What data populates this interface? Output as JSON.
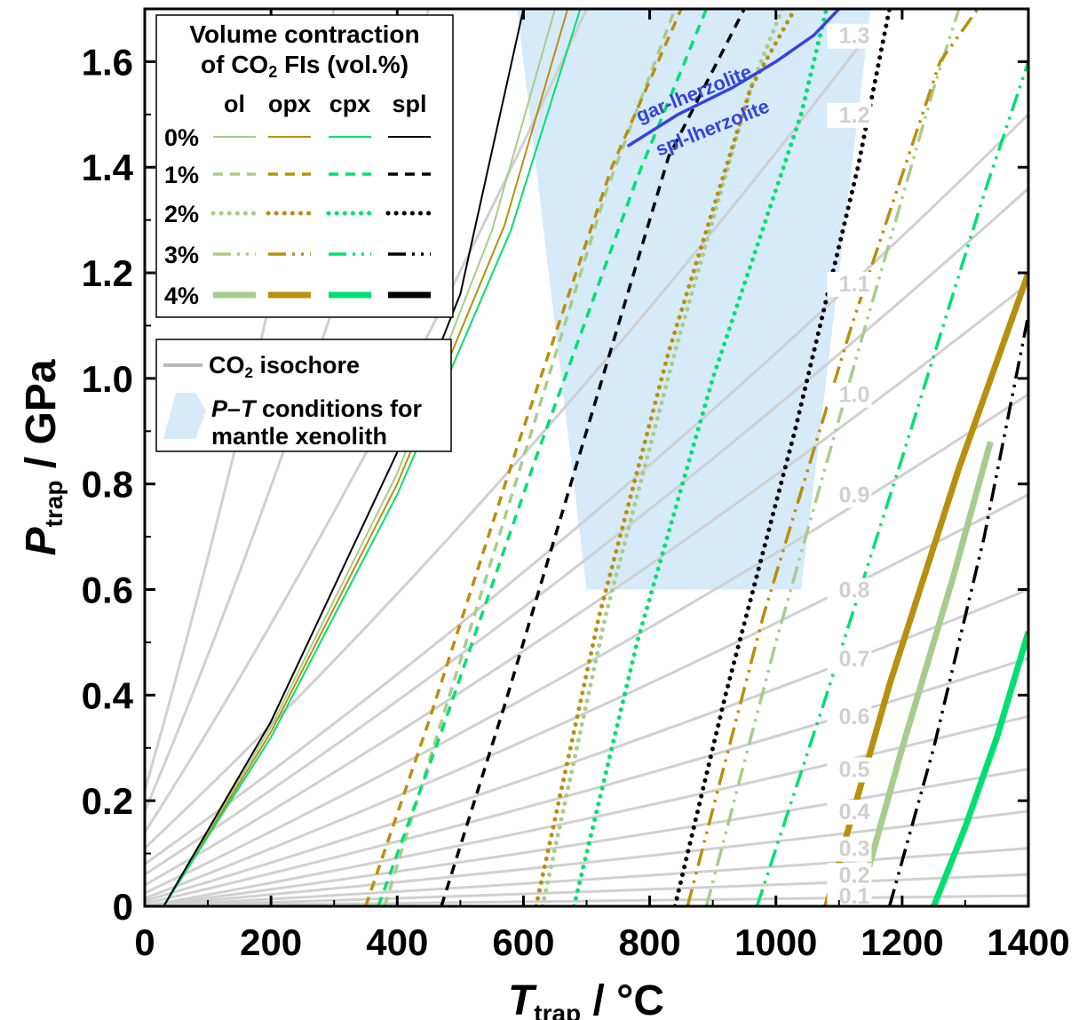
{
  "chart_data": {
    "type": "line",
    "xlabel_main": "T",
    "xlabel_sub": "trap",
    "xlabel_unit": " / °C",
    "ylabel_main": "P",
    "ylabel_sub": "trap",
    "ylabel_unit": " / GPa",
    "xlim": [
      0,
      1400
    ],
    "ylim": [
      0,
      1.7
    ],
    "xticks": [
      "0",
      "200",
      "400",
      "600",
      "800",
      "1000",
      "1200",
      "1400"
    ],
    "yticks": [
      "0",
      "0.2",
      "0.4",
      "0.6",
      "0.8",
      "1.0",
      "1.2",
      "1.4",
      "1.6"
    ],
    "xtick_values": [
      0,
      200,
      400,
      600,
      800,
      1000,
      1200,
      1400
    ],
    "ytick_values": [
      0,
      0.2,
      0.4,
      0.6,
      0.8,
      1.0,
      1.2,
      1.4,
      1.6
    ],
    "grid": false,
    "colors": {
      "ol": "#a8cc8c",
      "opx": "#b8900e",
      "cpx": "#00e070",
      "spl": "#000000",
      "isochore": "#d0d0d0",
      "region": "#d6eaf8",
      "boundary": "#3344e0"
    },
    "isochores": [
      {
        "label": "0.1",
        "points": [
          [
            0,
            0
          ],
          [
            1400,
            0.02
          ]
        ]
      },
      {
        "label": "0.2",
        "points": [
          [
            0,
            0
          ],
          [
            1400,
            0.06
          ]
        ]
      },
      {
        "label": "0.3",
        "points": [
          [
            0,
            0
          ],
          [
            1400,
            0.11
          ]
        ]
      },
      {
        "label": "0.4",
        "points": [
          [
            0,
            0
          ],
          [
            1400,
            0.18
          ]
        ]
      },
      {
        "label": "0.5",
        "points": [
          [
            0,
            0
          ],
          [
            1400,
            0.26
          ]
        ]
      },
      {
        "label": "0.6",
        "points": [
          [
            0,
            0
          ],
          [
            1400,
            0.36
          ]
        ]
      },
      {
        "label": "0.7",
        "points": [
          [
            0,
            0.005
          ],
          [
            1400,
            0.47
          ]
        ]
      },
      {
        "label": "0.8",
        "points": [
          [
            0,
            0.01
          ],
          [
            1400,
            0.6
          ]
        ]
      },
      {
        "label": "0.9",
        "points": [
          [
            0,
            0.015
          ],
          [
            1400,
            0.78
          ]
        ]
      },
      {
        "label": "1.0",
        "points": [
          [
            0,
            0.025
          ],
          [
            1400,
            0.97
          ]
        ]
      },
      {
        "label": "1.1",
        "points": [
          [
            0,
            0.04
          ],
          [
            1400,
            1.18
          ]
        ]
      },
      {
        "label": "",
        "points": [
          [
            0,
            0.06
          ],
          [
            1400,
            1.36
          ]
        ]
      },
      {
        "label": "1.2",
        "points": [
          [
            0,
            0.08
          ],
          [
            1400,
            1.5
          ]
        ]
      },
      {
        "label": "1.3",
        "points": [
          [
            0,
            0.11
          ],
          [
            1145,
            1.65
          ]
        ]
      },
      {
        "label": "",
        "points": [
          [
            0,
            0.14
          ],
          [
            700,
            1.7
          ]
        ]
      },
      {
        "label": "",
        "points": [
          [
            0,
            0.18
          ],
          [
            450,
            1.7
          ]
        ]
      },
      {
        "label": "",
        "points": [
          [
            0,
            0.22
          ],
          [
            300,
            1.7
          ]
        ]
      }
    ],
    "isochore_label_x": 1160,
    "region": [
      [
        590,
        1.7
      ],
      [
        1150,
        1.7
      ],
      [
        1040,
        0.6
      ],
      [
        700,
        0.6
      ]
    ],
    "region_label": "",
    "boundary": {
      "points": [
        [
          765,
          1.44
        ],
        [
          845,
          1.5
        ],
        [
          930,
          1.55
        ],
        [
          1000,
          1.6
        ],
        [
          1060,
          1.65
        ],
        [
          1100,
          1.7
        ]
      ],
      "label_upper": "gar-lherzolite",
      "label_lower": "spl-lherzolite"
    },
    "series": [
      {
        "mineral": "ol",
        "contraction": "0%",
        "points": [
          [
            30,
            0
          ],
          [
            200,
            0.34
          ],
          [
            400,
            0.82
          ],
          [
            550,
            1.28
          ],
          [
            650,
            1.7
          ]
        ]
      },
      {
        "mineral": "opx",
        "contraction": "0%",
        "points": [
          [
            30,
            0
          ],
          [
            200,
            0.33
          ],
          [
            400,
            0.8
          ],
          [
            570,
            1.29
          ],
          [
            670,
            1.7
          ]
        ]
      },
      {
        "mineral": "cpx",
        "contraction": "0%",
        "points": [
          [
            30,
            0
          ],
          [
            200,
            0.32
          ],
          [
            400,
            0.78
          ],
          [
            580,
            1.28
          ],
          [
            690,
            1.7
          ]
        ]
      },
      {
        "mineral": "spl",
        "contraction": "0%",
        "points": [
          [
            30,
            0
          ],
          [
            200,
            0.35
          ],
          [
            400,
            0.86
          ],
          [
            500,
            1.16
          ],
          [
            600,
            1.7
          ]
        ]
      },
      {
        "mineral": "ol",
        "contraction": "1%",
        "points": [
          [
            380,
            0
          ],
          [
            470,
            0.35
          ],
          [
            600,
            0.85
          ],
          [
            730,
            1.35
          ],
          [
            840,
            1.7
          ]
        ]
      },
      {
        "mineral": "opx",
        "contraction": "1%",
        "points": [
          [
            350,
            0
          ],
          [
            450,
            0.35
          ],
          [
            590,
            0.87
          ],
          [
            740,
            1.4
          ],
          [
            850,
            1.7
          ]
        ]
      },
      {
        "mineral": "cpx",
        "contraction": "1%",
        "points": [
          [
            370,
            0
          ],
          [
            470,
            0.33
          ],
          [
            620,
            0.85
          ],
          [
            780,
            1.38
          ],
          [
            890,
            1.7
          ]
        ]
      },
      {
        "mineral": "spl",
        "contraction": "1%",
        "points": [
          [
            470,
            0
          ],
          [
            570,
            0.38
          ],
          [
            700,
            0.9
          ],
          [
            830,
            1.42
          ],
          [
            950,
            1.7
          ]
        ]
      },
      {
        "mineral": "ol",
        "contraction": "2%",
        "points": [
          [
            630,
            0
          ],
          [
            730,
            0.55
          ],
          [
            840,
            1.05
          ],
          [
            960,
            1.55
          ],
          [
            1010,
            1.7
          ]
        ]
      },
      {
        "mineral": "opx",
        "contraction": "2%",
        "points": [
          [
            620,
            0
          ],
          [
            720,
            0.55
          ],
          [
            830,
            1.05
          ],
          [
            960,
            1.55
          ],
          [
            1030,
            1.7
          ]
        ]
      },
      {
        "mineral": "cpx",
        "contraction": "2%",
        "points": [
          [
            680,
            0
          ],
          [
            780,
            0.5
          ],
          [
            900,
            1.0
          ],
          [
            1040,
            1.5
          ],
          [
            1080,
            1.7
          ]
        ]
      },
      {
        "mineral": "spl",
        "contraction": "2%",
        "points": [
          [
            840,
            0
          ],
          [
            920,
            0.4
          ],
          [
            1030,
            0.9
          ],
          [
            1130,
            1.4
          ],
          [
            1180,
            1.7
          ]
        ]
      },
      {
        "mineral": "ol",
        "contraction": "3%",
        "points": [
          [
            890,
            0
          ],
          [
            1000,
            0.5
          ],
          [
            1130,
            1.05
          ],
          [
            1250,
            1.55
          ],
          [
            1290,
            1.7
          ]
        ]
      },
      {
        "mineral": "opx",
        "contraction": "3%",
        "points": [
          [
            860,
            0
          ],
          [
            980,
            0.55
          ],
          [
            1120,
            1.1
          ],
          [
            1260,
            1.6
          ],
          [
            1320,
            1.7
          ]
        ]
      },
      {
        "mineral": "cpx",
        "contraction": "3%",
        "points": [
          [
            970,
            0
          ],
          [
            1080,
            0.4
          ],
          [
            1200,
            0.85
          ],
          [
            1330,
            1.35
          ],
          [
            1400,
            1.6
          ]
        ]
      },
      {
        "mineral": "spl",
        "contraction": "3%",
        "points": [
          [
            1180,
            0
          ],
          [
            1250,
            0.3
          ],
          [
            1330,
            0.7
          ],
          [
            1400,
            1.12
          ]
        ]
      },
      {
        "mineral": "ol",
        "contraction": "4%",
        "points": [
          [
            1130,
            0
          ],
          [
            1200,
            0.3
          ],
          [
            1280,
            0.62
          ],
          [
            1340,
            0.88
          ]
        ]
      },
      {
        "mineral": "opx",
        "contraction": "4%",
        "points": [
          [
            1080,
            0
          ],
          [
            1180,
            0.42
          ],
          [
            1290,
            0.83
          ],
          [
            1400,
            1.2
          ]
        ]
      },
      {
        "mineral": "cpx",
        "contraction": "4%",
        "points": [
          [
            1250,
            0
          ],
          [
            1300,
            0.15
          ],
          [
            1350,
            0.32
          ],
          [
            1400,
            0.52
          ]
        ]
      }
    ],
    "legend1": {
      "title_line1": "Volume contraction",
      "title_line2_pre": "of CO",
      "title_line2_sub": "2",
      "title_line2_post": " FIs (vol.%)",
      "columns": [
        "ol",
        "opx",
        "cpx",
        "spl"
      ],
      "rows": [
        "0%",
        "1%",
        "2%",
        "3%",
        "4%"
      ],
      "placement": "top-left"
    },
    "legend2": {
      "isochore_pre": "CO",
      "isochore_sub": "2",
      "isochore_post": " isochore",
      "region_italic": "P–T",
      "region_rest": " conditions for",
      "region_line2": "mantle xenolith",
      "placement": "upper-left"
    }
  }
}
